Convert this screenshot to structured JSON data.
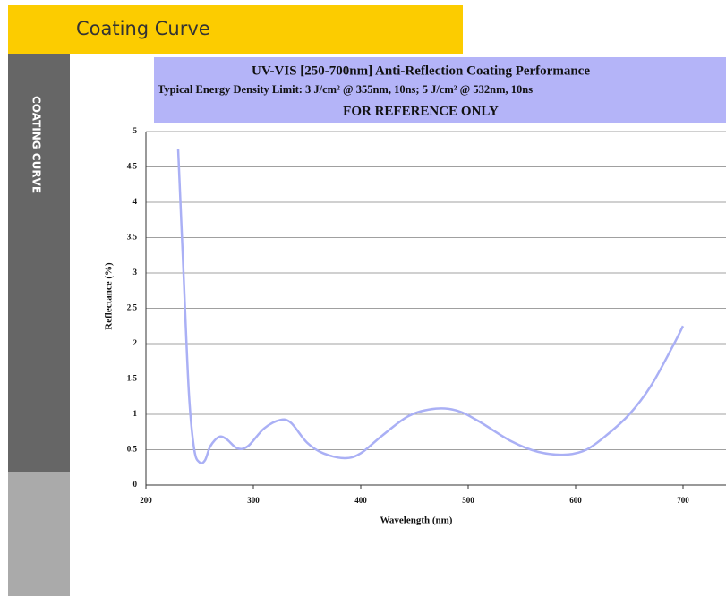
{
  "header": {
    "title": "Coating Curve"
  },
  "sidebar": {
    "label": "COATING CURVE"
  },
  "chart_data": {
    "type": "line",
    "title": "UV-VIS [250-700nm] Anti-Reflection Coating Performance",
    "subtitle": "Typical Energy Density Limit: 3 J/cm² @ 355nm, 10ns; 5 J/cm² @ 532nm, 10ns",
    "annotation": "FOR REFERENCE ONLY",
    "xlabel": "Wavelength (nm)",
    "ylabel": "Reflectance (%)",
    "x": [
      230,
      235,
      240,
      245,
      250,
      255,
      260,
      268,
      275,
      285,
      295,
      310,
      325,
      335,
      350,
      365,
      385,
      400,
      420,
      445,
      470,
      490,
      510,
      540,
      565,
      590,
      610,
      630,
      650,
      670,
      690,
      700
    ],
    "values": [
      4.75,
      3.0,
      1.3,
      0.5,
      0.32,
      0.35,
      0.55,
      0.68,
      0.65,
      0.52,
      0.55,
      0.8,
      0.92,
      0.88,
      0.6,
      0.45,
      0.38,
      0.45,
      0.7,
      0.98,
      1.08,
      1.05,
      0.9,
      0.62,
      0.47,
      0.43,
      0.5,
      0.72,
      1.0,
      1.4,
      1.95,
      2.25
    ],
    "color": "#aab0f5",
    "xlim": [
      200,
      740
    ],
    "ylim": [
      0,
      5
    ],
    "xticks": [
      200,
      300,
      400,
      500,
      600,
      700
    ],
    "yticks": [
      0,
      0.5,
      1,
      1.5,
      2,
      2.5,
      3,
      3.5,
      4,
      4.5,
      5
    ],
    "grid": true
  }
}
